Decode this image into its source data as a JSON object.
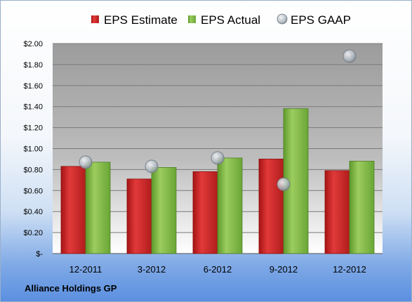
{
  "company_name": "Alliance Holdings GP",
  "colors": {
    "estimate": "#d42a2a",
    "actual": "#82b94a",
    "gaap": "#a9b3bd"
  },
  "chart_data": {
    "type": "bar",
    "categories": [
      "12-2011",
      "3-2012",
      "6-2012",
      "9-2012",
      "12-2012"
    ],
    "series": [
      {
        "name": "EPS Estimate",
        "kind": "bar",
        "values": [
          0.83,
          0.71,
          0.78,
          0.9,
          0.79
        ]
      },
      {
        "name": "EPS Actual",
        "kind": "bar",
        "values": [
          0.87,
          0.82,
          0.91,
          1.38,
          0.88
        ]
      },
      {
        "name": "EPS GAAP",
        "kind": "scatter",
        "values": [
          0.87,
          0.83,
          0.91,
          0.66,
          1.88
        ]
      }
    ],
    "ylim": [
      0,
      2.0
    ],
    "yticks": [
      0,
      0.2,
      0.4,
      0.6,
      0.8,
      1.0,
      1.2,
      1.4,
      1.6,
      1.8,
      2.0
    ],
    "ytick_labels": [
      "$-",
      "$0.20",
      "$0.40",
      "$0.60",
      "$0.80",
      "$1.00",
      "$1.20",
      "$1.40",
      "$1.60",
      "$1.80",
      "$2.00"
    ],
    "title": "",
    "xlabel": "",
    "ylabel": "",
    "legend_position": "top",
    "grid": true
  }
}
